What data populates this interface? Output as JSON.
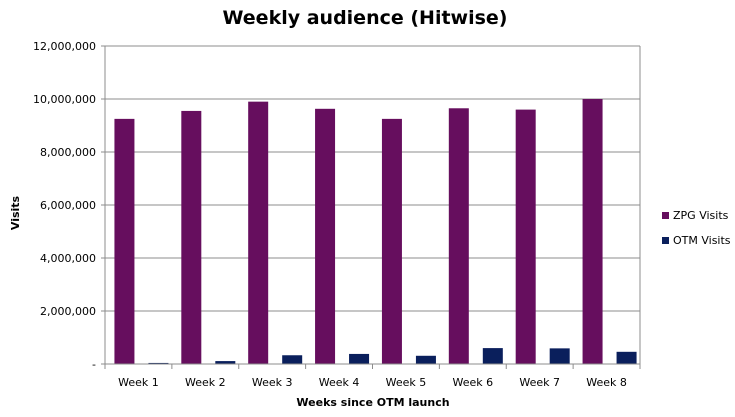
{
  "chart_data": {
    "type": "bar",
    "title": "Weekly audience (Hitwise)",
    "xlabel": "Weeks since OTM launch",
    "ylabel": "Visits",
    "categories": [
      "Week 1",
      "Week 2",
      "Week 3",
      "Week 4",
      "Week 5",
      "Week 6",
      "Week 7",
      "Week 8"
    ],
    "series": [
      {
        "name": "ZPG Visits",
        "color": "#660e5e",
        "values": [
          9250000,
          9550000,
          9900000,
          9630000,
          9250000,
          9650000,
          9600000,
          10000000
        ]
      },
      {
        "name": "OTM Visits",
        "color": "#0a1f5c",
        "values": [
          40000,
          110000,
          330000,
          380000,
          310000,
          600000,
          590000,
          460000
        ]
      }
    ],
    "ylim": [
      0,
      12000000
    ],
    "yticks": [
      0,
      2000000,
      4000000,
      6000000,
      8000000,
      10000000,
      12000000
    ],
    "ytick_labels": [
      "-",
      "2,000,000",
      "4,000,000",
      "6,000,000",
      "8,000,000",
      "10,000,000",
      "12,000,000"
    ],
    "grid": true,
    "legend_position": "right"
  }
}
